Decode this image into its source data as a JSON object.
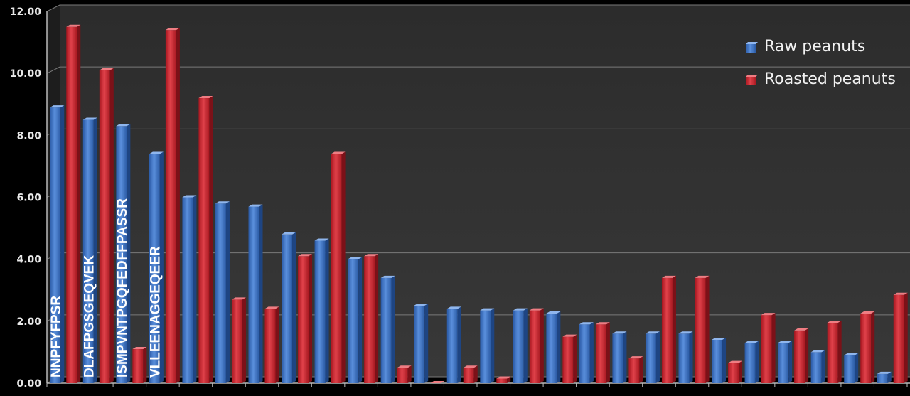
{
  "chart_data": {
    "type": "bar",
    "ylim": [
      0,
      12
    ],
    "y_ticks": [
      "0.00",
      "2.00",
      "4.00",
      "6.00",
      "8.00",
      "10.00",
      "12.00"
    ],
    "grid": true,
    "legend_position": "top-right",
    "bar_labels": [
      "NNPFYFPSR",
      "DLAFPGSGEQVEK",
      "ISMPVNTPGQFEDFFPASSR",
      "VLLEENAGGEQEER"
    ],
    "series": [
      {
        "name": "Raw peanuts",
        "color": "#3d72c4",
        "values": [
          8.9,
          8.5,
          8.3,
          7.4,
          6.0,
          5.8,
          5.7,
          4.8,
          4.6,
          4.0,
          3.4,
          2.5,
          2.4,
          2.35,
          2.35,
          2.25,
          1.9,
          1.6,
          1.6,
          1.6,
          1.4,
          1.3,
          1.3,
          1.0,
          0.9,
          0.3
        ]
      },
      {
        "name": "Roasted peanuts",
        "color": "#d42b35",
        "values": [
          11.5,
          10.1,
          1.1,
          11.4,
          9.2,
          2.7,
          2.4,
          4.1,
          7.4,
          4.1,
          0.5,
          0,
          0.5,
          0.15,
          2.35,
          1.5,
          1.9,
          0.8,
          3.4,
          3.4,
          0.65,
          2.2,
          1.7,
          1.95,
          2.25,
          2.85
        ]
      }
    ]
  }
}
